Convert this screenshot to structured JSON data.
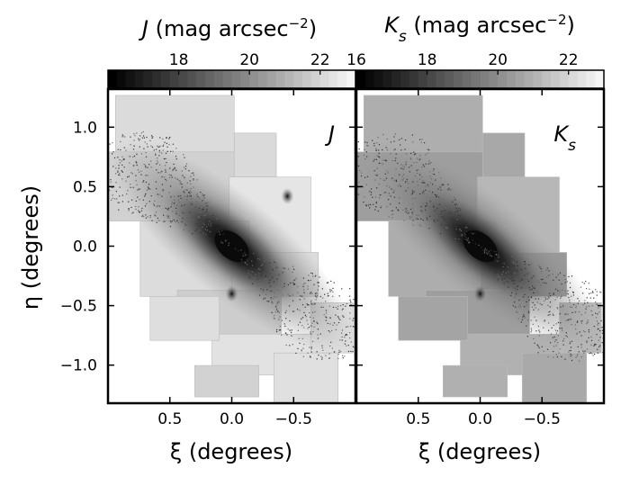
{
  "chart_data": [
    {
      "type": "heatmap",
      "panel_label": "J",
      "colorbar_label_sym": "J",
      "colorbar_label_unit": " (mag arcsec",
      "colorbar_label_exp": "−2",
      "colorbar_label_close": ")",
      "colorbar_range": [
        16,
        23
      ],
      "colorbar_ticks": [
        18,
        20,
        22
      ],
      "colorbar_tick_labels": [
        "18",
        "20",
        "22"
      ],
      "colorbar_placement": "top",
      "colormap": "gray",
      "xlabel": "ξ (degrees)",
      "ylabel": "η (degrees)",
      "xlim": [
        1.0,
        -1.0
      ],
      "ylim": [
        -1.32,
        1.32
      ],
      "xticks": [
        0.5,
        0.0,
        -0.5
      ],
      "xtick_labels": [
        "0.5",
        "0.0",
        "−0.5"
      ],
      "yticks": [
        1.0,
        0.5,
        0.0,
        -0.5,
        -1.0
      ],
      "ytick_labels": [
        "1.0",
        "0.5",
        "0.0",
        "−0.5",
        "−1.0"
      ],
      "galaxy_center": [
        0.0,
        0.0
      ],
      "bright_blobs": [
        {
          "xi": -0.45,
          "eta": 0.42,
          "mag": 18.5
        },
        {
          "xi": 0.0,
          "eta": -0.4,
          "mag": 18.5
        }
      ]
    },
    {
      "type": "heatmap",
      "panel_label": "K",
      "panel_label_sub": "s",
      "colorbar_label_sym": "K",
      "colorbar_label_sub": "s",
      "colorbar_label_unit": " (mag arcsec",
      "colorbar_label_exp": "−2",
      "colorbar_label_close": ")",
      "colorbar_range": [
        16,
        23
      ],
      "colorbar_ticks": [
        16,
        18,
        20,
        22
      ],
      "colorbar_tick_labels": [
        "16",
        "18",
        "20",
        "22"
      ],
      "colorbar_placement": "top",
      "colormap": "gray",
      "xlabel": "ξ (degrees)",
      "xlim": [
        1.0,
        -1.0
      ],
      "ylim": [
        -1.32,
        1.32
      ],
      "xticks": [
        0.5,
        0.0,
        -0.5
      ],
      "xtick_labels": [
        "0.5",
        "0.0",
        "−0.5"
      ],
      "galaxy_center": [
        0.0,
        0.0
      ],
      "bright_blobs": [
        {
          "xi": 0.0,
          "eta": -0.4,
          "mag": 18.5
        }
      ]
    }
  ],
  "colors": {
    "frame": "#000000",
    "background": "#ffffff",
    "field_light": "#e2e2e2",
    "field_mid": "#a0a0a0",
    "core": "#151515"
  }
}
